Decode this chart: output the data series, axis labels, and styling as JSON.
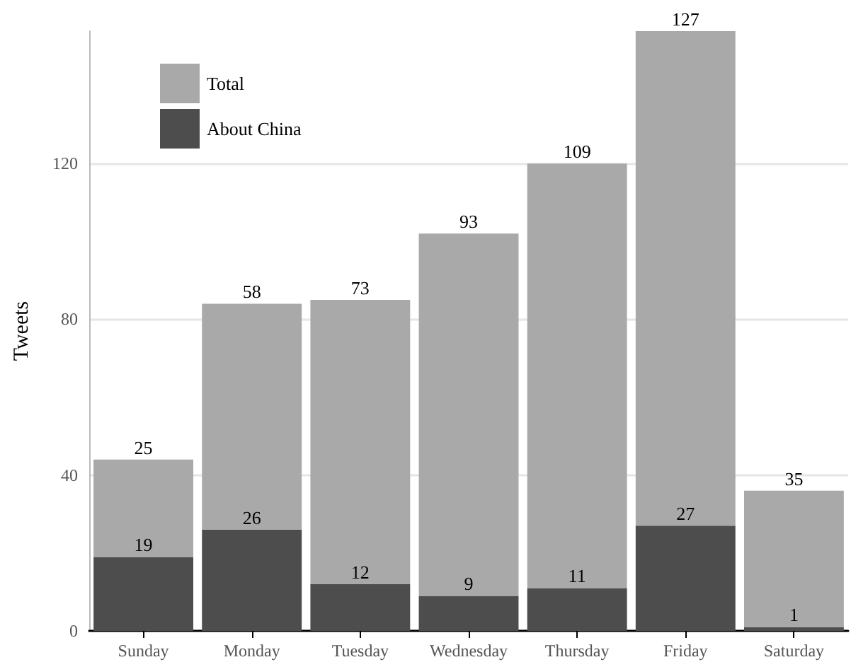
{
  "chart_data": {
    "type": "bar",
    "ylabel": "Tweets",
    "categories": [
      "Sunday",
      "Monday",
      "Tuesday",
      "Wednesday",
      "Thursday",
      "Friday",
      "Saturday"
    ],
    "stacked": true,
    "data_labels": true,
    "grid": "y",
    "legend": "top left",
    "ylim": [
      0,
      154
    ],
    "yticks": [
      0,
      40,
      80,
      120
    ],
    "series": [
      {
        "name": "About China",
        "color": "#4d4d4d",
        "values": [
          19,
          26,
          12,
          9,
          11,
          27,
          1
        ]
      },
      {
        "name": "Total",
        "color": "#a9a9a9",
        "values": [
          25,
          58,
          73,
          93,
          109,
          127,
          35
        ]
      }
    ]
  }
}
